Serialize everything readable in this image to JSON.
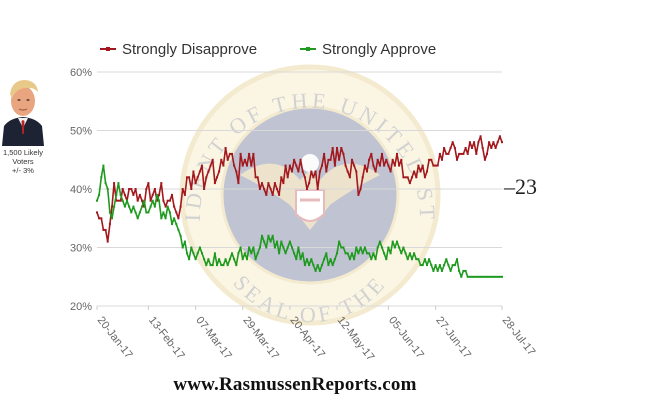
{
  "sidebar": {
    "portrait_icon": "person-portrait",
    "sample_line1": "1,500 Likely",
    "sample_line2": "Voters",
    "margin_of_error": "+/- 3%"
  },
  "watermark": {
    "emblem_icon": "presidential-seal",
    "text_top": "PRESIDENT OF THE UNITED STATES",
    "text_bottom": "SEAL OF THE"
  },
  "footer": {
    "site": "www.RasmussenReports.com"
  },
  "chart_data": {
    "type": "line",
    "title": "",
    "xlabel": "",
    "ylabel": "",
    "ylim": [
      20,
      60
    ],
    "y_ticks": [
      "20%",
      "30%",
      "40%",
      "50%",
      "60%"
    ],
    "x_tick_labels": [
      "20-Jan-17",
      "13-Feb-17",
      "07-Mar-17",
      "29-Mar-17",
      "20-Apr-17",
      "12-May-17",
      "05-Jun-17",
      "27-Jun-17",
      "28-Jul-17"
    ],
    "x_tick_dates": [
      "2017-01-20",
      "2017-02-13",
      "2017-03-07",
      "2017-03-29",
      "2017-04-20",
      "2017-05-12",
      "2017-06-05",
      "2017-06-27",
      "2017-07-28"
    ],
    "grid": true,
    "legend": "top",
    "annotation": "–23",
    "series": [
      {
        "name": "Strongly Disapprove",
        "color": "#a3181d",
        "dates": [
          "2017-01-20",
          "2017-01-21",
          "2017-01-22",
          "2017-01-23",
          "2017-01-24",
          "2017-01-25",
          "2017-01-26",
          "2017-01-27",
          "2017-01-28",
          "2017-01-29",
          "2017-01-30",
          "2017-01-31",
          "2017-02-01",
          "2017-02-02",
          "2017-02-03",
          "2017-02-04",
          "2017-02-05",
          "2017-02-06",
          "2017-02-07",
          "2017-02-08",
          "2017-02-09",
          "2017-02-10",
          "2017-02-11",
          "2017-02-12",
          "2017-02-13",
          "2017-02-14",
          "2017-02-15",
          "2017-02-16",
          "2017-02-17",
          "2017-02-18",
          "2017-02-19",
          "2017-02-20",
          "2017-02-21",
          "2017-02-22",
          "2017-02-23",
          "2017-02-24",
          "2017-02-25",
          "2017-02-26",
          "2017-02-27",
          "2017-02-28",
          "2017-03-01",
          "2017-03-02",
          "2017-03-03",
          "2017-03-04",
          "2017-03-05",
          "2017-03-06",
          "2017-03-07",
          "2017-03-08",
          "2017-03-09",
          "2017-03-10",
          "2017-03-11",
          "2017-03-12",
          "2017-03-13",
          "2017-03-14",
          "2017-03-15",
          "2017-03-16",
          "2017-03-17",
          "2017-03-18",
          "2017-03-19",
          "2017-03-20",
          "2017-03-21",
          "2017-03-22",
          "2017-03-23",
          "2017-03-24",
          "2017-03-25",
          "2017-03-26",
          "2017-03-27",
          "2017-03-28",
          "2017-03-29",
          "2017-03-30",
          "2017-03-31",
          "2017-04-01",
          "2017-04-02",
          "2017-04-03",
          "2017-04-04",
          "2017-04-05",
          "2017-04-06",
          "2017-04-07",
          "2017-04-08",
          "2017-04-09",
          "2017-04-10",
          "2017-04-11",
          "2017-04-12",
          "2017-04-13",
          "2017-04-14",
          "2017-04-15",
          "2017-04-16",
          "2017-04-17",
          "2017-04-18",
          "2017-04-19",
          "2017-04-20",
          "2017-04-21",
          "2017-04-22",
          "2017-04-23",
          "2017-04-24",
          "2017-04-25",
          "2017-04-26",
          "2017-04-27",
          "2017-04-28",
          "2017-04-29",
          "2017-04-30",
          "2017-05-01",
          "2017-05-02",
          "2017-05-03",
          "2017-05-04",
          "2017-05-05",
          "2017-05-06",
          "2017-05-07",
          "2017-05-08",
          "2017-05-09",
          "2017-05-10",
          "2017-05-11",
          "2017-05-12",
          "2017-05-13",
          "2017-05-14",
          "2017-05-15",
          "2017-05-16",
          "2017-05-17",
          "2017-05-18",
          "2017-05-19",
          "2017-05-20",
          "2017-05-21",
          "2017-05-22",
          "2017-05-23",
          "2017-05-24",
          "2017-05-25",
          "2017-05-26",
          "2017-05-27",
          "2017-05-28",
          "2017-05-29",
          "2017-05-30",
          "2017-05-31",
          "2017-06-01",
          "2017-06-02",
          "2017-06-03",
          "2017-06-04",
          "2017-06-05",
          "2017-06-06",
          "2017-06-07",
          "2017-06-08",
          "2017-06-09",
          "2017-06-10",
          "2017-06-11",
          "2017-06-12",
          "2017-06-13",
          "2017-06-14",
          "2017-06-15",
          "2017-06-16",
          "2017-06-17",
          "2017-06-18",
          "2017-06-19",
          "2017-06-20",
          "2017-06-21",
          "2017-06-22",
          "2017-06-23",
          "2017-06-24",
          "2017-06-25",
          "2017-06-26",
          "2017-06-27",
          "2017-06-28",
          "2017-06-29",
          "2017-06-30",
          "2017-07-01",
          "2017-07-02",
          "2017-07-03",
          "2017-07-04",
          "2017-07-05",
          "2017-07-06",
          "2017-07-07",
          "2017-07-08",
          "2017-07-09",
          "2017-07-10",
          "2017-07-11",
          "2017-07-12",
          "2017-07-13",
          "2017-07-14",
          "2017-07-15",
          "2017-07-16",
          "2017-07-17",
          "2017-07-18",
          "2017-07-19",
          "2017-07-20",
          "2017-07-21",
          "2017-07-22",
          "2017-07-23",
          "2017-07-24",
          "2017-07-25",
          "2017-07-26",
          "2017-07-27",
          "2017-07-28"
        ],
        "values": [
          36,
          35,
          35,
          33,
          33,
          31,
          34,
          37,
          41,
          38,
          38,
          38,
          40,
          39,
          38,
          40,
          40,
          39,
          40,
          38,
          39,
          38,
          37,
          40,
          41,
          38,
          39,
          40,
          38,
          39,
          41,
          38,
          37,
          38,
          38,
          39,
          37,
          36,
          35,
          37,
          40,
          39,
          42,
          42,
          40,
          43,
          41,
          42,
          43,
          44,
          40,
          42,
          43,
          44,
          45,
          41,
          42,
          43,
          45,
          44,
          47,
          45,
          46,
          46,
          44,
          43,
          41,
          46,
          44,
          45,
          44,
          46,
          44,
          46,
          42,
          42,
          40,
          41,
          40,
          39,
          41,
          40,
          39,
          41,
          40,
          39,
          42,
          41,
          44,
          42,
          44,
          43,
          45,
          44,
          43,
          45,
          43,
          42,
          40,
          41,
          43,
          42,
          43,
          40,
          43,
          44,
          46,
          43,
          45,
          45,
          47,
          44,
          47,
          45,
          47,
          46,
          44,
          43,
          42,
          45,
          44,
          43,
          39,
          40,
          42,
          44,
          43,
          45,
          46,
          44,
          43,
          45,
          44,
          46,
          44,
          45,
          44,
          43,
          45,
          44,
          46,
          44,
          45,
          42,
          42,
          42,
          41,
          42,
          43,
          42,
          44,
          43,
          44,
          42,
          43,
          45,
          45,
          44,
          44,
          44,
          46,
          45,
          47,
          46,
          46,
          47,
          48,
          47,
          45,
          46,
          46,
          46,
          47,
          46,
          48,
          47,
          48,
          46,
          48,
          49,
          47,
          45,
          46,
          48,
          47,
          48,
          47,
          48,
          49,
          48
        ]
      },
      {
        "name": "Strongly Approve",
        "color": "#1e9a1e",
        "dates": [
          "2017-01-20",
          "2017-01-21",
          "2017-01-22",
          "2017-01-23",
          "2017-01-24",
          "2017-01-25",
          "2017-01-26",
          "2017-01-27",
          "2017-01-28",
          "2017-01-29",
          "2017-01-30",
          "2017-01-31",
          "2017-02-01",
          "2017-02-02",
          "2017-02-03",
          "2017-02-04",
          "2017-02-05",
          "2017-02-06",
          "2017-02-07",
          "2017-02-08",
          "2017-02-09",
          "2017-02-10",
          "2017-02-11",
          "2017-02-12",
          "2017-02-13",
          "2017-02-14",
          "2017-02-15",
          "2017-02-16",
          "2017-02-17",
          "2017-02-18",
          "2017-02-19",
          "2017-02-20",
          "2017-02-21",
          "2017-02-22",
          "2017-02-23",
          "2017-02-24",
          "2017-02-25",
          "2017-02-26",
          "2017-02-27",
          "2017-02-28",
          "2017-03-01",
          "2017-03-02",
          "2017-03-03",
          "2017-03-04",
          "2017-03-05",
          "2017-03-06",
          "2017-03-07",
          "2017-03-08",
          "2017-03-09",
          "2017-03-10",
          "2017-03-11",
          "2017-03-12",
          "2017-03-13",
          "2017-03-14",
          "2017-03-15",
          "2017-03-16",
          "2017-03-17",
          "2017-03-18",
          "2017-03-19",
          "2017-03-20",
          "2017-03-21",
          "2017-03-22",
          "2017-03-23",
          "2017-03-24",
          "2017-03-25",
          "2017-03-26",
          "2017-03-27",
          "2017-03-28",
          "2017-03-29",
          "2017-03-30",
          "2017-03-31",
          "2017-04-01",
          "2017-04-02",
          "2017-04-03",
          "2017-04-04",
          "2017-04-05",
          "2017-04-06",
          "2017-04-07",
          "2017-04-08",
          "2017-04-09",
          "2017-04-10",
          "2017-04-11",
          "2017-04-12",
          "2017-04-13",
          "2017-04-14",
          "2017-04-15",
          "2017-04-16",
          "2017-04-17",
          "2017-04-18",
          "2017-04-19",
          "2017-04-20",
          "2017-04-21",
          "2017-04-22",
          "2017-04-23",
          "2017-04-24",
          "2017-04-25",
          "2017-04-26",
          "2017-04-27",
          "2017-04-28",
          "2017-04-29",
          "2017-04-30",
          "2017-05-01",
          "2017-05-02",
          "2017-05-03",
          "2017-05-04",
          "2017-05-05",
          "2017-05-06",
          "2017-05-07",
          "2017-05-08",
          "2017-05-09",
          "2017-05-10",
          "2017-05-11",
          "2017-05-12",
          "2017-05-13",
          "2017-05-14",
          "2017-05-15",
          "2017-05-16",
          "2017-05-17",
          "2017-05-18",
          "2017-05-19",
          "2017-05-20",
          "2017-05-21",
          "2017-05-22",
          "2017-05-23",
          "2017-05-24",
          "2017-05-25",
          "2017-05-26",
          "2017-05-27",
          "2017-05-28",
          "2017-05-29",
          "2017-05-30",
          "2017-05-31",
          "2017-06-01",
          "2017-06-02",
          "2017-06-03",
          "2017-06-04",
          "2017-06-05",
          "2017-06-06",
          "2017-06-07",
          "2017-06-08",
          "2017-06-09",
          "2017-06-10",
          "2017-06-11",
          "2017-06-12",
          "2017-06-13",
          "2017-06-14",
          "2017-06-15",
          "2017-06-16",
          "2017-06-17",
          "2017-06-18",
          "2017-06-19",
          "2017-06-20",
          "2017-06-21",
          "2017-06-22",
          "2017-06-23",
          "2017-06-24",
          "2017-06-25",
          "2017-06-26",
          "2017-06-27",
          "2017-06-28",
          "2017-06-29",
          "2017-06-30",
          "2017-07-01",
          "2017-07-02",
          "2017-07-03",
          "2017-07-04",
          "2017-07-05",
          "2017-07-06",
          "2017-07-07",
          "2017-07-08",
          "2017-07-09",
          "2017-07-10",
          "2017-07-11",
          "2017-07-12",
          "2017-07-13",
          "2017-07-14",
          "2017-07-15",
          "2017-07-16",
          "2017-07-17",
          "2017-07-18",
          "2017-07-19",
          "2017-07-20",
          "2017-07-21",
          "2017-07-22",
          "2017-07-23",
          "2017-07-24",
          "2017-07-25",
          "2017-07-26",
          "2017-07-27",
          "2017-07-28"
        ],
        "values": [
          38,
          39,
          42,
          44,
          41,
          40,
          36,
          35,
          37,
          39,
          41,
          39,
          38,
          37,
          38,
          37,
          36,
          37,
          36,
          35,
          36,
          37,
          38,
          36,
          36,
          37,
          38,
          37,
          39,
          38,
          35,
          36,
          35,
          37,
          36,
          34,
          35,
          34,
          33,
          32,
          30,
          31,
          29,
          28,
          30,
          29,
          28,
          29,
          30,
          29,
          28,
          27,
          28,
          27,
          27,
          29,
          27,
          28,
          27,
          27,
          28,
          27,
          28,
          29,
          28,
          27,
          29,
          30,
          28,
          29,
          28,
          30,
          29,
          30,
          28,
          29,
          30,
          32,
          31,
          30,
          32,
          31,
          32,
          30,
          31,
          29,
          31,
          30,
          29,
          30,
          31,
          30,
          29,
          28,
          30,
          28,
          29,
          27,
          28,
          27,
          28,
          27,
          26,
          27,
          26,
          27,
          28,
          29,
          27,
          28,
          27,
          28,
          29,
          31,
          30,
          30,
          29,
          29,
          28,
          29,
          28,
          30,
          29,
          30,
          29,
          30,
          29,
          29,
          28,
          29,
          28,
          30,
          31,
          30,
          29,
          28,
          30,
          29,
          31,
          30,
          31,
          30,
          29,
          30,
          29,
          28,
          29,
          28,
          29,
          28,
          28,
          27,
          27,
          28,
          27,
          28,
          27,
          26,
          27,
          26,
          27,
          26,
          27,
          28,
          27,
          26,
          27,
          27,
          28,
          26,
          25,
          26,
          26,
          25,
          25,
          25,
          25,
          25,
          25,
          25,
          25,
          25,
          25,
          25,
          25,
          25,
          25,
          25,
          25,
          25
        ]
      }
    ]
  }
}
